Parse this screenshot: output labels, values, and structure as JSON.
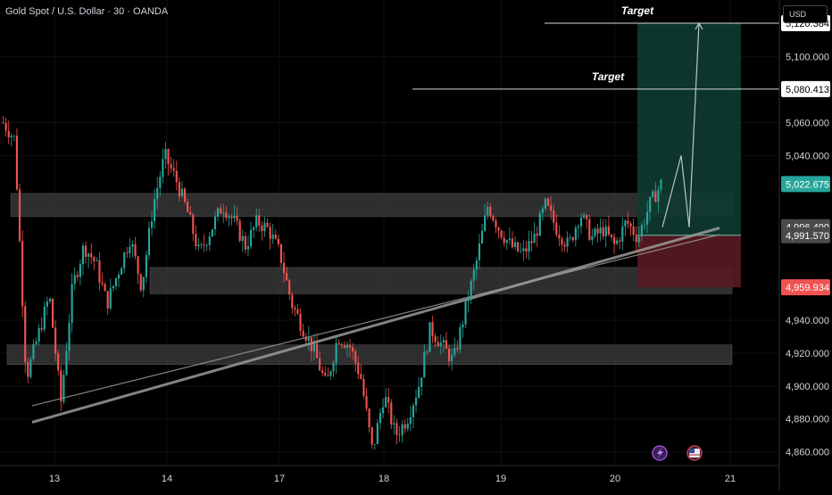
{
  "header": {
    "symbol_title": "Gold Spot / U.S. Dollar · 30 · OANDA"
  },
  "currency_button": "USD",
  "colors": {
    "up": "#26a69a",
    "down": "#ef5350",
    "target_zone": "#0e3b30",
    "stop_zone": "#5a1a22",
    "zone_box": "#3a3a3a",
    "trendline": "#9a9a9a",
    "grid": "#111111"
  },
  "chart_data": {
    "type": "candlestick",
    "symbol": "Gold Spot / U.S. Dollar",
    "interval": "30",
    "source": "OANDA",
    "x_tick_labels": [
      "13",
      "14",
      "17",
      "18",
      "19",
      "20",
      "21"
    ],
    "y_tick_labels": [
      5100,
      5060,
      5040,
      4940,
      4920,
      4900,
      4880,
      4860
    ],
    "y_range": [
      4843,
      5128
    ],
    "price_labels": [
      {
        "value": 5120.384,
        "text": "5,120.384",
        "style": "white"
      },
      {
        "value": 5080.413,
        "text": "5,080.413",
        "style": "white"
      },
      {
        "value": 5022.675,
        "text": "5,022.675",
        "style": "green"
      },
      {
        "value": 4996.49,
        "text": "4,996.490",
        "style": "gray"
      },
      {
        "value": 4991.57,
        "text": "4,991.570",
        "style": "gray"
      },
      {
        "value": 4959.934,
        "text": "4,959.934",
        "style": "red"
      }
    ],
    "annotations": [
      {
        "text": "Target",
        "price": 5120.384
      },
      {
        "text": "Target",
        "price": 5080.413
      }
    ],
    "zones": [
      {
        "name": "upper-zone",
        "top": 5017,
        "bottom": 5003
      },
      {
        "name": "middle-zone",
        "top": 4972,
        "bottom": 4956
      },
      {
        "name": "lower-zone",
        "top": 4925,
        "bottom": 4913
      }
    ],
    "position": {
      "entry": 4991.57,
      "target": 5120.384,
      "stop": 4959.934
    },
    "trendlines": [
      {
        "from": [
          13,
          4888
        ],
        "to": [
          20.8,
          4992
        ]
      },
      {
        "from": [
          13,
          4878
        ],
        "to": [
          20.8,
          4996
        ]
      }
    ],
    "projected_path": [
      4996.49,
      5040,
      4996.49,
      5120.384
    ],
    "ohlc_path": [
      5060,
      5050,
      4905,
      4930,
      4955,
      4890,
      4960,
      4985,
      4975,
      4950,
      4970,
      4990,
      4960,
      5010,
      5040,
      5025,
      5005,
      4980,
      4995,
      5010,
      5000,
      4985,
      5000,
      4995,
      4980,
      4950,
      4935,
      4920,
      4900,
      4930,
      4925,
      4905,
      4860,
      4895,
      4870,
      4880,
      4900,
      4935,
      4925,
      4915,
      4945,
      4975,
      5010,
      4995,
      4985,
      4980,
      4990,
      5010,
      4995,
      4985,
      5005,
      4990,
      4995,
      4985,
      5000,
      4990,
      5010,
      5022.675
    ]
  }
}
